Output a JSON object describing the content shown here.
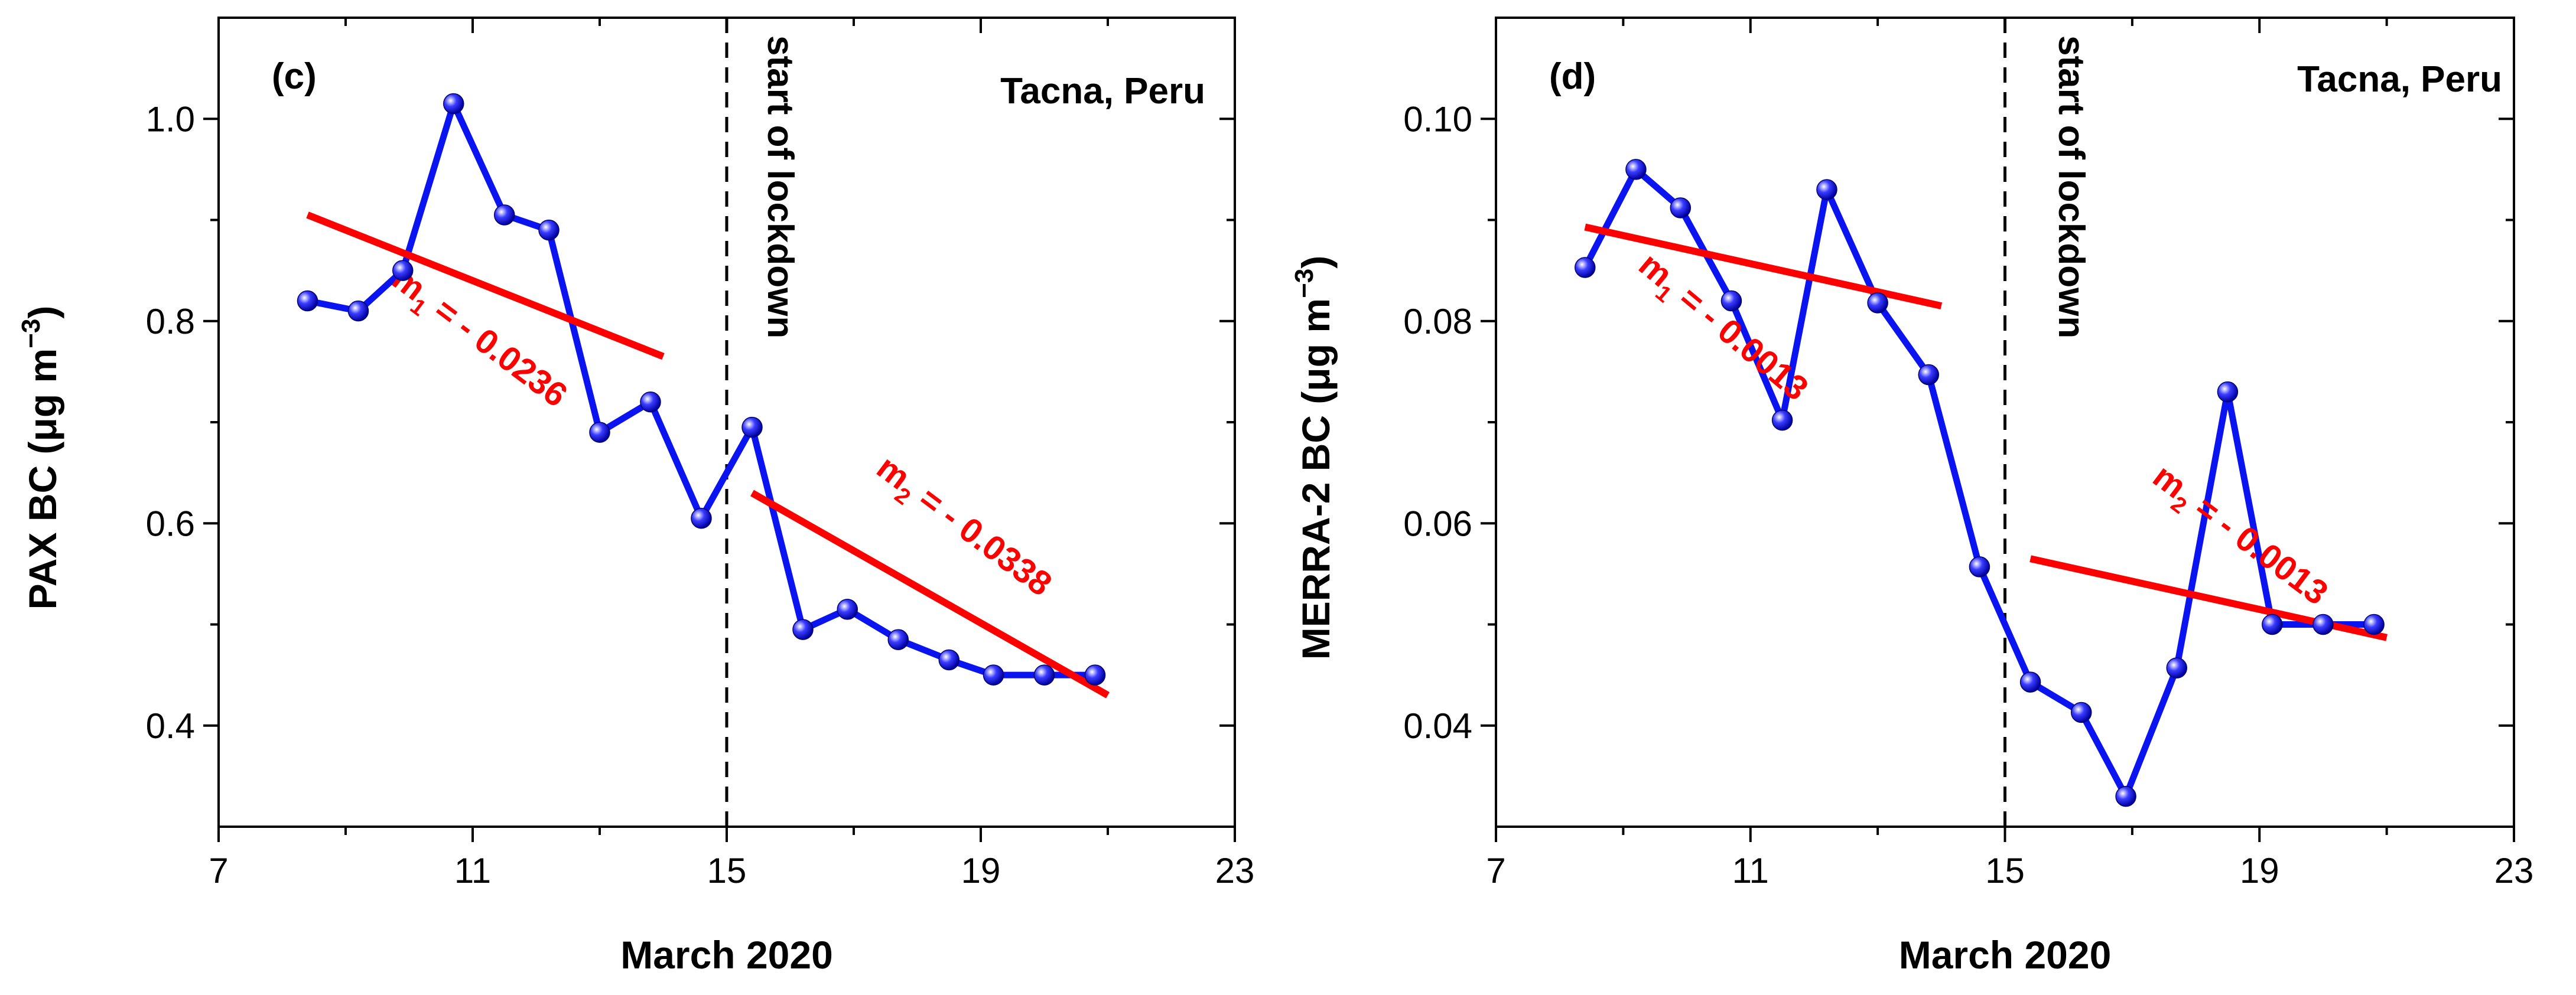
{
  "colors": {
    "series": "#0a14f0",
    "trend": "#ff0000",
    "axis": "#000000",
    "lockdown": "#000000"
  },
  "chart_data": [
    {
      "type": "line",
      "panel": "(c)",
      "location": "Tacna, Peru",
      "xlabel": "March 2020",
      "ylabel": "PAX BC (μg m⁻³)",
      "ylabel_main": "PAX BC (",
      "ylabel_unit": "μg m",
      "ylabel_exp": "−3",
      "ylabel_close": ")",
      "xlim": [
        7,
        23
      ],
      "ylim": [
        0.3,
        1.1
      ],
      "x_ticks": [
        7,
        11,
        15,
        19,
        23
      ],
      "x_tick_labels": [
        "7",
        "11",
        "15",
        "19",
        "23"
      ],
      "y_ticks": [
        0.4,
        0.6,
        0.8,
        1.0
      ],
      "y_tick_labels": [
        "0.4",
        "0.6",
        "0.8",
        "1.0"
      ],
      "lockdown_x": 15,
      "lockdown_label": "start of lockdown",
      "series": {
        "name": "PAX BC",
        "x": [
          8.4,
          9.2,
          9.9,
          10.7,
          11.5,
          12.2,
          13.0,
          13.8,
          14.6,
          15.4,
          16.2,
          16.9,
          17.7,
          18.5,
          19.2,
          20.0,
          20.8
        ],
        "y": [
          0.82,
          0.81,
          0.85,
          1.015,
          0.905,
          0.89,
          0.69,
          0.72,
          0.605,
          0.695,
          0.495,
          0.515,
          0.485,
          0.465,
          0.45,
          0.45,
          0.45
        ]
      },
      "trends": [
        {
          "name": "m1",
          "x": [
            8.4,
            14.0
          ],
          "y": [
            0.905,
            0.765
          ],
          "label_prefix": "m",
          "label_sub": "1",
          "label_value": " = - 0.0236"
        },
        {
          "name": "m2",
          "x": [
            15.4,
            21.0
          ],
          "y": [
            0.63,
            0.43
          ],
          "label_prefix": "m",
          "label_sub": "2",
          "label_value": " = - 0.0338"
        }
      ]
    },
    {
      "type": "line",
      "panel": "(d)",
      "location": "Tacna, Peru",
      "xlabel": "March 2020",
      "ylabel": "MERRA-2 BC (μg m⁻³)",
      "ylabel_main": "MERRA-2 BC (",
      "ylabel_unit": "μg m",
      "ylabel_exp": "−3",
      "ylabel_close": ")",
      "xlim": [
        7,
        23
      ],
      "ylim": [
        0.03,
        0.11
      ],
      "x_ticks": [
        7,
        11,
        15,
        19,
        23
      ],
      "x_tick_labels": [
        "7",
        "11",
        "15",
        "19",
        "23"
      ],
      "y_ticks": [
        0.04,
        0.06,
        0.08,
        0.1
      ],
      "y_tick_labels": [
        "0.04",
        "0.06",
        "0.08",
        "0.10"
      ],
      "lockdown_x": 15,
      "lockdown_label": "start of lockdown",
      "series": {
        "name": "MERRA-2 BC",
        "x": [
          8.4,
          9.2,
          9.9,
          10.7,
          11.5,
          12.2,
          13.0,
          13.8,
          14.6,
          15.4,
          16.2,
          16.9,
          17.7,
          18.5,
          19.2,
          20.0,
          20.8
        ],
        "y": [
          0.0853,
          0.095,
          0.0912,
          0.082,
          0.0702,
          0.093,
          0.0818,
          0.0747,
          0.0557,
          0.0443,
          0.0413,
          0.033,
          0.0457,
          0.073,
          0.05,
          0.05,
          0.05
        ]
      },
      "trends": [
        {
          "name": "m1",
          "x": [
            8.4,
            14.0
          ],
          "y": [
            0.0893,
            0.0815
          ],
          "label_prefix": "m",
          "label_sub": "1",
          "label_value": " = - 0.0013"
        },
        {
          "name": "m2",
          "x": [
            15.4,
            21.0
          ],
          "y": [
            0.0565,
            0.0487
          ],
          "label_prefix": "m",
          "label_sub": "2",
          "label_value": " = - 0.0013"
        }
      ]
    }
  ]
}
